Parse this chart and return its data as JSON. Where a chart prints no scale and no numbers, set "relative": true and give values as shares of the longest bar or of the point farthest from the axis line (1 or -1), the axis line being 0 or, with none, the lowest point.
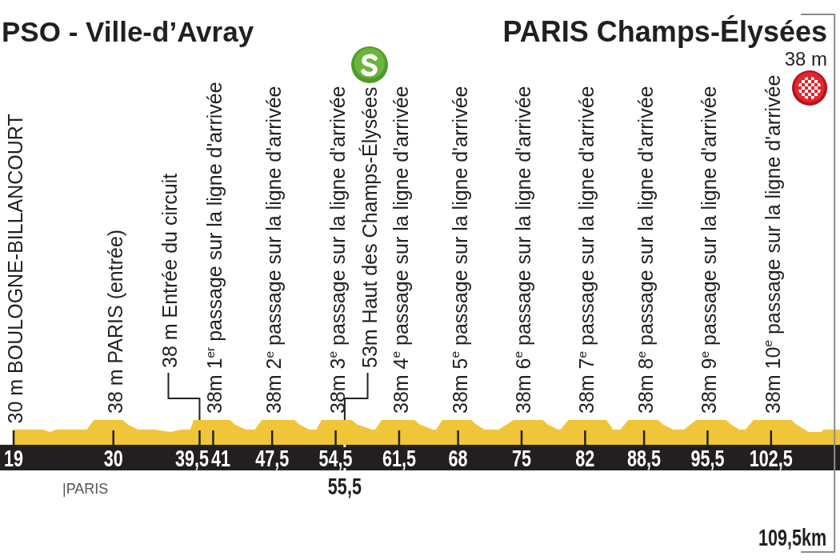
{
  "chart_data": {
    "type": "area",
    "relative": true,
    "color": "#f0c537",
    "title": "PSO - Ville-d’Avray",
    "subtitle": "PARIS Champs-Élysées",
    "x": [
      19.0,
      22.2,
      23.0,
      23.7,
      27.1,
      27.9,
      31.0,
      31.6,
      32.7,
      34.5,
      36.3,
      37.5,
      38.5,
      38.9,
      42.8,
      43.4,
      44.6,
      45.6,
      46.4,
      49.9,
      50.5,
      51.6,
      52.4,
      53.0,
      56.2,
      56.9,
      58.5,
      58.9,
      59.6,
      63.1,
      63.8,
      65.2,
      65.6,
      66.3,
      69.4,
      70.0,
      70.9,
      72.5,
      74.2,
      77.3,
      77.9,
      79.0,
      79.3,
      80.2,
      84.3,
      84.7,
      85.0,
      85.9,
      86.8,
      90.0,
      90.6,
      91.7,
      92.9,
      94.3,
      97.5,
      98.1,
      99.0,
      99.7,
      100.6,
      104.7,
      105.3,
      106.2,
      106.7,
      108.0,
      108.3,
      110.1
    ],
    "values": [
      0.6,
      0.6,
      0.5,
      0.6,
      0.6,
      1,
      1,
      0.8,
      0.6,
      0.6,
      0.5,
      0.6,
      0.6,
      1,
      1,
      0.8,
      0.6,
      0.6,
      1,
      1,
      0.8,
      0.6,
      0.6,
      1,
      1,
      0.8,
      0.6,
      0.6,
      1,
      1,
      0.8,
      0.6,
      0.6,
      1,
      1,
      0.8,
      0.6,
      0.6,
      1,
      1,
      0.8,
      0.6,
      0.6,
      1,
      1,
      0.8,
      0.6,
      0.6,
      1,
      1,
      0.8,
      0.6,
      0.6,
      1,
      1,
      0.8,
      0.6,
      0.6,
      1,
      1,
      0.8,
      0.6,
      0.5,
      0.5,
      0.6,
      0.6
    ],
    "xlim": [
      17.5,
      110.1
    ],
    "xticks": [
      19,
      30,
      {
        "value": 39.5,
        "label": "39,5"
      },
      41,
      {
        "value": 47.5,
        "label": "47,5"
      },
      {
        "value": 54.5,
        "label": "54,5"
      },
      {
        "value": 61.5,
        "label": "61,5"
      },
      68,
      75,
      82,
      {
        "value": 88.5,
        "label": "88,5"
      },
      {
        "value": 95.5,
        "label": "95,5"
      },
      {
        "value": 102.5,
        "label": "102,5"
      }
    ],
    "ref_lines": [
      {
        "axis": "x",
        "value": 55.5,
        "label": "55,5",
        "color": "#ffffff"
      },
      {
        "axis": "x",
        "value": 109.5,
        "label": "109,5km",
        "color": "#8c8c8c"
      }
    ],
    "annotations": [
      "38 m",
      "|PARIS",
      {
        "text": "30 m BOULOGNE-BILLANCOURT",
        "x": 19,
        "y": 0.6
      },
      {
        "text": "38 m PARIS (entrée)",
        "x": 30,
        "y": 1
      },
      {
        "text": "38 m Entrée du circuit",
        "x": 39.5,
        "y": 1
      },
      {
        "text": "38m 1$^{er}$ passage sur la ligne d'arrivée",
        "x": 41,
        "y": 1
      },
      {
        "text": "38m 2$^{e}$ passage sur la ligne d'arrivée",
        "x": 47.5,
        "y": 1
      },
      {
        "text": "38m 3$^{e}$ passage sur la ligne d'arrivée",
        "x": 54.5,
        "y": 1
      },
      {
        "text": "53m Haut des Champs-Élysées",
        "x": 55.5,
        "y": 1
      },
      {
        "text": "38m 4$^{e}$ passage sur la ligne d'arrivée",
        "x": 61.5,
        "y": 1
      },
      {
        "text": "38m 5$^{e}$ passage sur la ligne d'arrivée",
        "x": 68,
        "y": 1
      },
      {
        "text": "38m 6$^{e}$ passage sur la ligne d'arrivée",
        "x": 75,
        "y": 1
      },
      {
        "text": "38m 7$^{e}$ passage sur la ligne d'arrivée",
        "x": 82,
        "y": 1
      },
      {
        "text": "38m 8$^{e}$ passage sur la ligne d'arrivée",
        "x": 88.5,
        "y": 1
      },
      {
        "text": "38m 9$^{e}$ passage sur la ligne d'arrivée",
        "x": 95.5,
        "y": 1
      },
      {
        "text": "38m 10$^{e}$ passage sur la ligne d'arrivée",
        "x": 102.5,
        "y": 1
      }
    ]
  }
}
